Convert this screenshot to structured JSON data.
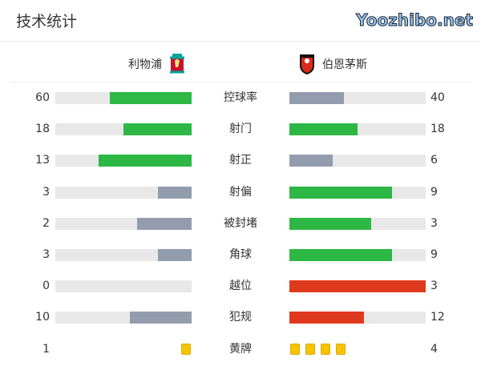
{
  "title": "技术统计",
  "home": {
    "name": "利物浦",
    "logo": "liverpool-crest"
  },
  "away": {
    "name": "伯恩茅斯",
    "logo": "bournemouth-crest"
  },
  "colors": {
    "better": "#2db744",
    "worse": "#939cad",
    "bad": "#e03a1e",
    "card": "#f6c400"
  },
  "stats": [
    {
      "label": "控球率",
      "home": 60,
      "away": 40,
      "home_color": "#2db744",
      "away_color": "#939cad"
    },
    {
      "label": "射门",
      "home": 18,
      "away": 18,
      "home_color": "#2db744",
      "away_color": "#2db744"
    },
    {
      "label": "射正",
      "home": 13,
      "away": 6,
      "home_color": "#2db744",
      "away_color": "#939cad"
    },
    {
      "label": "射偏",
      "home": 3,
      "away": 9,
      "home_color": "#939cad",
      "away_color": "#2db744"
    },
    {
      "label": "被封堵",
      "home": 2,
      "away": 3,
      "home_color": "#939cad",
      "away_color": "#2db744"
    },
    {
      "label": "角球",
      "home": 3,
      "away": 9,
      "home_color": "#939cad",
      "away_color": "#2db744"
    },
    {
      "label": "越位",
      "home": 0,
      "away": 3,
      "home_color": "#939cad",
      "away_color": "#e03a1e"
    },
    {
      "label": "犯规",
      "home": 10,
      "away": 12,
      "home_color": "#939cad",
      "away_color": "#e03a1e"
    }
  ],
  "yellow_cards": {
    "label": "黄牌",
    "home": 1,
    "away": 4
  },
  "watermark": "Yoozhibo.net"
}
